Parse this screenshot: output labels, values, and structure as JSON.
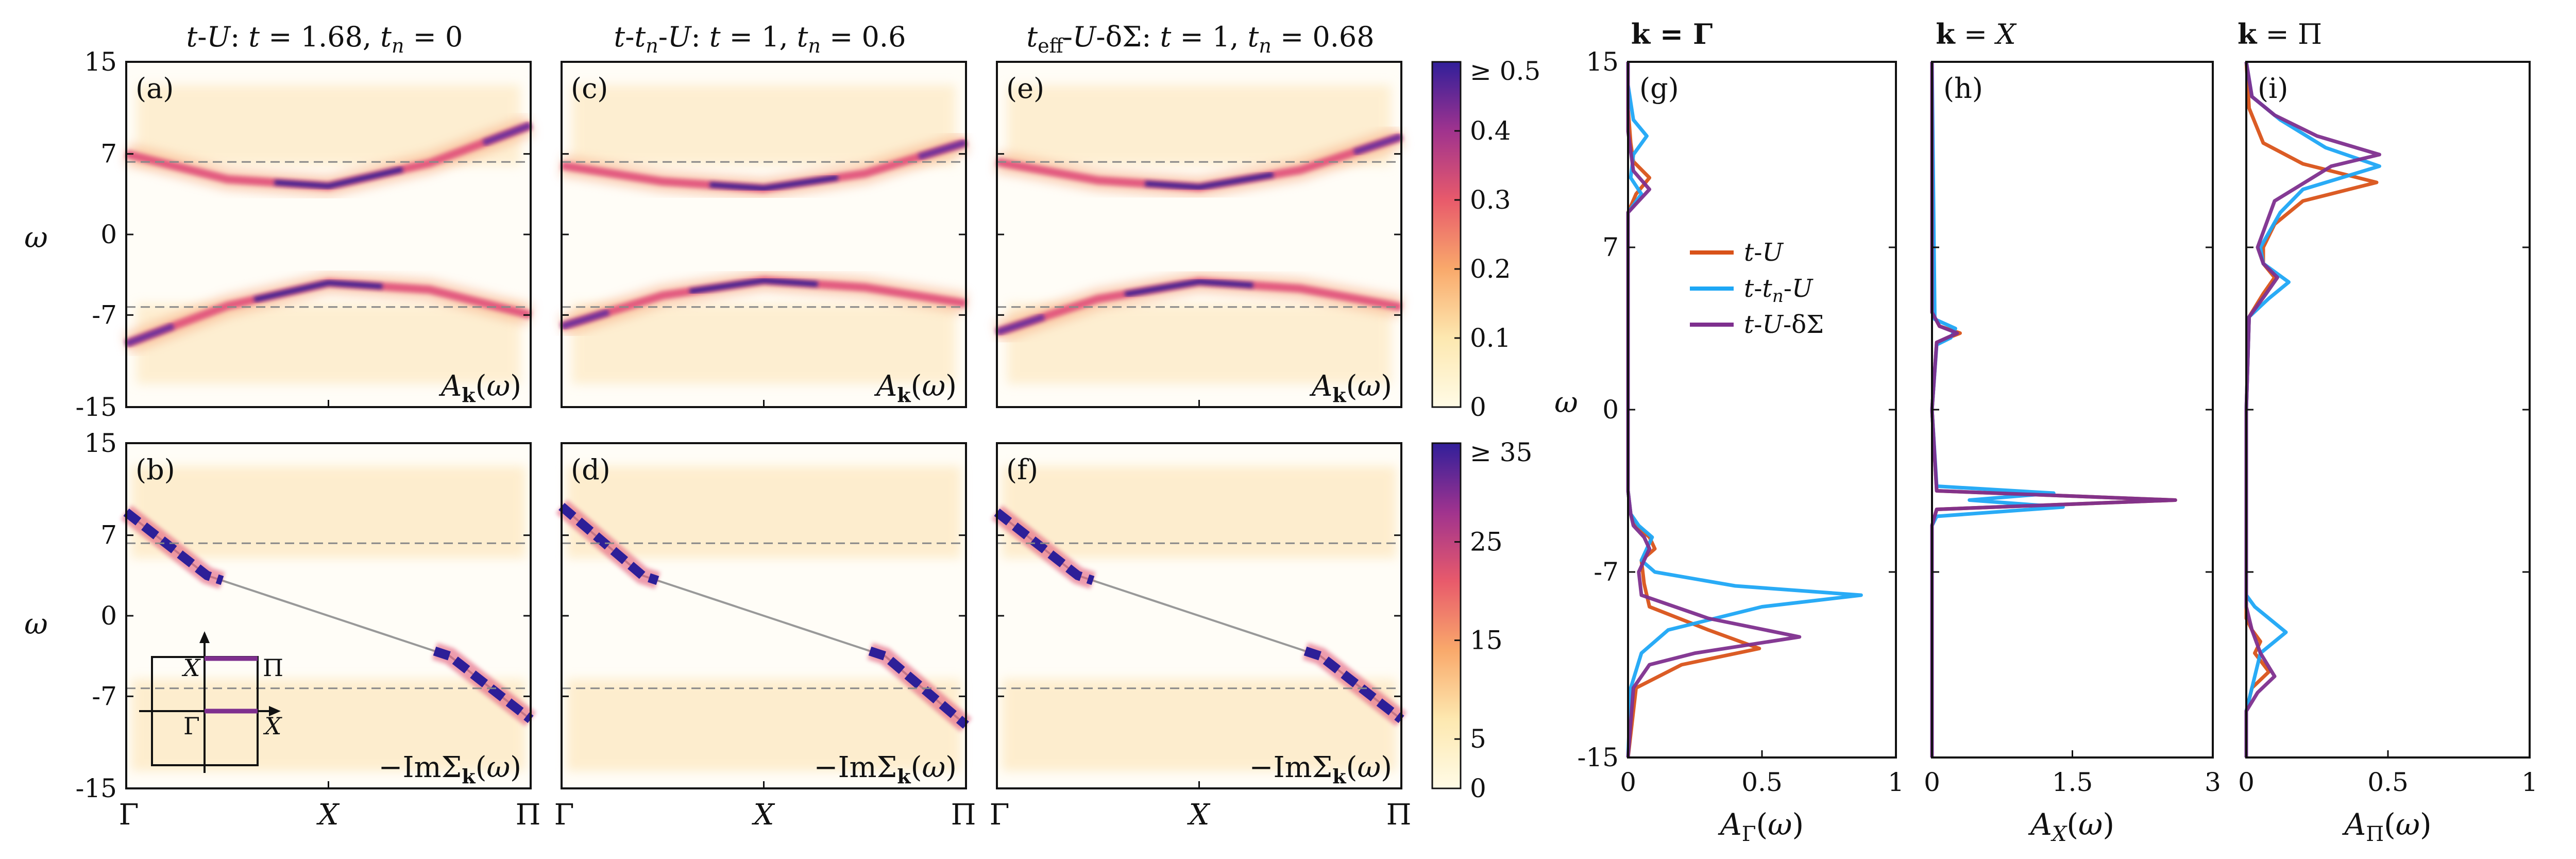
{
  "figure": {
    "panel_titles": {
      "tU": "t-U: t = 1.68, t_n = 0",
      "ttnU": "t-t_n-U: t = 1, t_n = 0.6",
      "teff": "t_eff-U-δΣ: t = 1, t_n = 0.68",
      "gamma": "k = Γ",
      "x": "k = X",
      "pi": "k = Π"
    },
    "panel_letters": [
      "(a)",
      "(b)",
      "(c)",
      "(d)",
      "(e)",
      "(f)",
      "(g)",
      "(h)",
      "(i)"
    ],
    "map_labels": {
      "spectral": "A_k(ω)",
      "selfenergy": "−ImΣ_k(ω)"
    },
    "omega_label": "ω",
    "k_ticks": [
      "Γ",
      "X",
      "Π"
    ],
    "omega_ticks": [
      "15",
      "7",
      "0",
      "-7",
      "-15"
    ],
    "colorbars": {
      "spectral": {
        "max_label": "≥ 0.5",
        "ticks": [
          "0.4",
          "0.3",
          "0.2",
          "0.1",
          "0"
        ]
      },
      "selfenergy": {
        "max_label": "≥ 35",
        "ticks": [
          "25",
          "15",
          "5",
          "0"
        ]
      }
    },
    "inset": {
      "labels": [
        "X",
        "Π",
        "Γ",
        "X"
      ]
    },
    "colors": {
      "tU": "#d95319",
      "ttnU": "#1ea7f5",
      "tUdS": "#7e2f8e",
      "colormap": [
        "#fffbe6",
        "#fde8b0",
        "#f9a96b",
        "#e85a6b",
        "#a0338e",
        "#311f9a"
      ]
    }
  },
  "chart_data": [
    {
      "type": "heatmap",
      "panel": "a",
      "title": "t-U: t = 1.68, t_n = 0",
      "quantity": "A_k(ω)",
      "ylabel": "ω",
      "x_ticks": [
        "Γ",
        "X",
        "Π"
      ],
      "ylim": [
        -15,
        15
      ],
      "dashed_lines": [
        6.3,
        -6.3
      ],
      "bands": [
        {
          "k": [
            0,
            0.25,
            0.5,
            0.75,
            1
          ],
          "omega": [
            -9.5,
            -6.2,
            -4.2,
            -4.8,
            -7.0
          ]
        },
        {
          "k": [
            0,
            0.25,
            0.5,
            0.75,
            1
          ],
          "omega": [
            7.0,
            4.8,
            4.2,
            6.2,
            9.5
          ]
        }
      ]
    },
    {
      "type": "heatmap",
      "panel": "b",
      "quantity": "−ImΣ_k(ω)",
      "ylabel": "ω",
      "x_ticks": [
        "Γ",
        "X",
        "Π"
      ],
      "ylim": [
        -15,
        15
      ],
      "dashed_lines": [
        6.3,
        -6.3
      ],
      "pole_line": {
        "k": [
          0,
          0.2,
          0.5,
          0.8,
          1
        ],
        "omega": [
          9.0,
          3.5,
          0,
          -3.5,
          -9.0
        ]
      }
    },
    {
      "type": "heatmap",
      "panel": "c",
      "title": "t-t_n-U: t = 1, t_n = 0.6",
      "quantity": "A_k(ω)",
      "x_ticks": [
        "Γ",
        "X",
        "Π"
      ],
      "ylim": [
        -15,
        15
      ],
      "dashed_lines": [
        6.3,
        -6.3
      ],
      "bands": [
        {
          "k": [
            0,
            0.25,
            0.5,
            0.75,
            1
          ],
          "omega": [
            -8.0,
            -5.3,
            -4.0,
            -4.6,
            -6.0
          ]
        },
        {
          "k": [
            0,
            0.25,
            0.5,
            0.75,
            1
          ],
          "omega": [
            6.0,
            4.6,
            4.0,
            5.3,
            8.0
          ]
        }
      ]
    },
    {
      "type": "heatmap",
      "panel": "d",
      "quantity": "−ImΣ_k(ω)",
      "x_ticks": [
        "Γ",
        "X",
        "Π"
      ],
      "ylim": [
        -15,
        15
      ],
      "dashed_lines": [
        6.3,
        -6.3
      ],
      "pole_line": {
        "k": [
          0,
          0.2,
          0.5,
          0.8,
          1
        ],
        "omega": [
          9.5,
          3.5,
          0,
          -3.5,
          -9.5
        ]
      }
    },
    {
      "type": "heatmap",
      "panel": "e",
      "title": "t_eff-U-δΣ: t = 1, t_n = 0.68",
      "quantity": "A_k(ω)",
      "x_ticks": [
        "Γ",
        "X",
        "Π"
      ],
      "ylim": [
        -15,
        15
      ],
      "dashed_lines": [
        6.3,
        -6.3
      ],
      "bands": [
        {
          "k": [
            0,
            0.25,
            0.5,
            0.75,
            1
          ],
          "omega": [
            -8.5,
            -5.6,
            -4.1,
            -4.7,
            -6.3
          ]
        },
        {
          "k": [
            0,
            0.25,
            0.5,
            0.75,
            1
          ],
          "omega": [
            6.3,
            4.7,
            4.1,
            5.6,
            8.5
          ]
        }
      ]
    },
    {
      "type": "heatmap",
      "panel": "f",
      "quantity": "−ImΣ_k(ω)",
      "x_ticks": [
        "Γ",
        "X",
        "Π"
      ],
      "ylim": [
        -15,
        15
      ],
      "dashed_lines": [
        6.3,
        -6.3
      ],
      "pole_line": {
        "k": [
          0,
          0.2,
          0.5,
          0.8,
          1
        ],
        "omega": [
          9.0,
          3.5,
          0,
          -3.5,
          -9.0
        ]
      }
    },
    {
      "type": "line",
      "panel": "g",
      "title": "k = Γ",
      "xlabel": "A_Γ(ω)",
      "ylabel": "ω",
      "xlim": [
        0,
        1
      ],
      "ylim": [
        -15,
        15
      ],
      "x_ticks": [
        "0",
        "0.5",
        "1"
      ],
      "y_ticks": [
        "15",
        "7",
        "0",
        "-7",
        "-15"
      ],
      "legend": [
        "t-U",
        "t-t_n-U",
        "t-U-δΣ"
      ],
      "series": [
        {
          "name": "t-U",
          "omega": [
            -15,
            -12,
            -11,
            -10.3,
            -9.5,
            -8.5,
            -7.5,
            -6.5,
            -6.0,
            -5.5,
            -5.0,
            -4.5,
            -3.5,
            0,
            8.5,
            9.3,
            10.0,
            10.7,
            11.5,
            13,
            15
          ],
          "value": [
            0,
            0.03,
            0.2,
            0.49,
            0.3,
            0.08,
            0.06,
            0.05,
            0.1,
            0.08,
            0.03,
            0.01,
            0,
            0,
            0,
            0.03,
            0.08,
            0.02,
            0.01,
            0,
            0
          ]
        },
        {
          "name": "t-t_n-U",
          "omega": [
            -15,
            -12,
            -10.5,
            -9.5,
            -8.5,
            -8.0,
            -7.6,
            -7.0,
            -6.5,
            -6.0,
            -5.5,
            -5.0,
            -4.5,
            -3.5,
            0,
            8.5,
            9.3,
            10.0,
            11.0,
            11.8,
            12.5,
            14,
            15
          ],
          "value": [
            0,
            0.01,
            0.05,
            0.15,
            0.5,
            0.87,
            0.4,
            0.1,
            0.05,
            0.07,
            0.09,
            0.04,
            0.01,
            0,
            0,
            0,
            0.05,
            0.01,
            0.02,
            0.07,
            0.02,
            0,
            0
          ]
        },
        {
          "name": "t-U-δΣ",
          "omega": [
            -15,
            -12,
            -11,
            -10.5,
            -9.8,
            -9.0,
            -8.0,
            -7.0,
            -6.5,
            -6.0,
            -5.5,
            -5.0,
            -4.5,
            -3.5,
            0,
            8.5,
            9.0,
            9.5,
            10.3,
            12,
            15
          ],
          "value": [
            0,
            0.02,
            0.08,
            0.25,
            0.64,
            0.3,
            0.05,
            0.04,
            0.06,
            0.08,
            0.06,
            0.02,
            0.01,
            0,
            0,
            0,
            0.04,
            0.08,
            0.02,
            0,
            0
          ]
        }
      ]
    },
    {
      "type": "line",
      "panel": "h",
      "title": "k = X",
      "xlabel": "A_X(ω)",
      "xlim": [
        0,
        3
      ],
      "ylim": [
        -15,
        15
      ],
      "x_ticks": [
        "0",
        "1.5",
        "3"
      ],
      "series": [
        {
          "name": "t-U",
          "omega": [
            -15,
            -5,
            -4.3,
            -3.9,
            -3.5,
            0,
            2.9,
            3.3,
            3.6,
            4.2,
            15
          ],
          "value": [
            0,
            0,
            0.05,
            2.6,
            0.05,
            0,
            0.05,
            0.3,
            0.08,
            0,
            0
          ]
        },
        {
          "name": "t-t_n-U",
          "omega": [
            -15,
            -5,
            -4.6,
            -4.2,
            -3.9,
            -3.6,
            -3.3,
            0,
            2.8,
            3.1,
            3.5,
            3.9,
            15
          ],
          "value": [
            0,
            0,
            0.05,
            1.4,
            0.4,
            1.3,
            0.05,
            0,
            0.05,
            0.2,
            0.25,
            0.03,
            0
          ]
        },
        {
          "name": "t-U-δΣ",
          "omega": [
            -15,
            -5,
            -4.3,
            -3.9,
            -3.5,
            0,
            2.9,
            3.3,
            3.6,
            4.2,
            15
          ],
          "value": [
            0,
            0,
            0.05,
            2.6,
            0.05,
            0,
            0.05,
            0.27,
            0.08,
            0,
            0
          ]
        }
      ]
    },
    {
      "type": "line",
      "panel": "i",
      "title": "k = Π",
      "xlabel": "A_Π(ω)",
      "xlim": [
        0,
        1
      ],
      "ylim": [
        -15,
        15
      ],
      "x_ticks": [
        "0",
        "0.5",
        "1"
      ],
      "series": [
        {
          "name": "t-U",
          "omega": [
            -15,
            -13,
            -12,
            -11.3,
            -10.5,
            -10,
            -9.5,
            -9,
            0,
            4,
            5,
            5.7,
            6.3,
            7,
            8,
            9,
            9.8,
            10.6,
            11.5,
            13,
            15
          ],
          "value": [
            0,
            0,
            0.02,
            0.08,
            0.03,
            0.05,
            0.02,
            0,
            0,
            0.01,
            0.06,
            0.1,
            0.06,
            0.06,
            0.1,
            0.2,
            0.46,
            0.2,
            0.06,
            0.01,
            0
          ]
        },
        {
          "name": "t-t_n-U",
          "omega": [
            -15,
            -13,
            -12,
            -10.5,
            -9.6,
            -8.5,
            -8.0,
            0,
            4,
            4.8,
            5.5,
            6.3,
            7,
            8.5,
            9.5,
            10.5,
            11.3,
            12.5,
            13.5,
            15
          ],
          "value": [
            0,
            0,
            0.02,
            0.05,
            0.14,
            0.03,
            0,
            0,
            0.01,
            0.08,
            0.15,
            0.06,
            0.05,
            0.12,
            0.2,
            0.47,
            0.28,
            0.12,
            0.02,
            0
          ]
        },
        {
          "name": "t-U-δΣ",
          "omega": [
            -15,
            -13,
            -12.2,
            -11.5,
            -10.5,
            -9.5,
            -8.5,
            0,
            4,
            5,
            5.7,
            6.3,
            7,
            9,
            10.5,
            11.0,
            11.8,
            12.7,
            13.5,
            15
          ],
          "value": [
            0,
            0,
            0.04,
            0.1,
            0.05,
            0.02,
            0,
            0,
            0.01,
            0.07,
            0.11,
            0.06,
            0.04,
            0.1,
            0.3,
            0.47,
            0.25,
            0.1,
            0.02,
            0
          ]
        }
      ]
    }
  ]
}
